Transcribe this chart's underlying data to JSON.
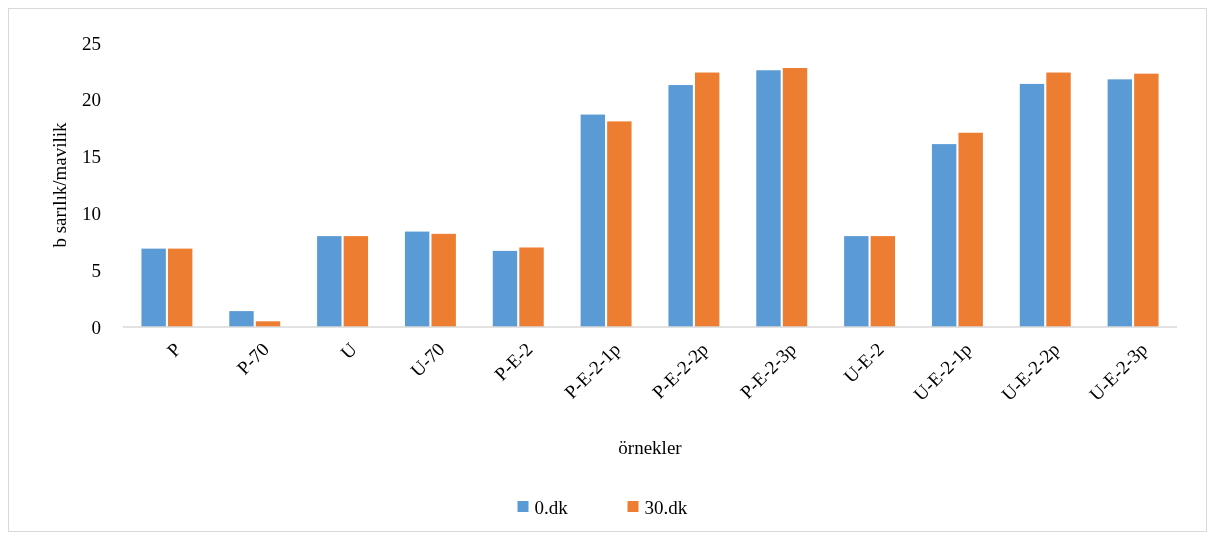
{
  "chart_data": {
    "type": "bar",
    "xlabel": "örnekler",
    "ylabel": "b sarılık/mavilik",
    "categories": [
      "P",
      "P-70",
      "U",
      "U-70",
      "P-E-2",
      "P-E-2-1p",
      "P-E-2-2p",
      "P-E-2-3p",
      "U-E-2",
      "U-E-2-1p",
      "U-E-2-2p",
      "U-E-2-3p"
    ],
    "series": [
      {
        "name": "0.dk",
        "color": "#5b9bd5",
        "values": [
          6.9,
          1.4,
          8.0,
          8.4,
          6.7,
          18.7,
          21.3,
          22.6,
          8.0,
          16.1,
          21.4,
          21.8
        ]
      },
      {
        "name": "30.dk",
        "color": "#ed7d31",
        "values": [
          6.9,
          0.5,
          8.0,
          8.2,
          7.0,
          18.1,
          22.4,
          22.8,
          8.0,
          17.1,
          22.4,
          22.3
        ]
      }
    ],
    "ylim": [
      0,
      25
    ],
    "yticks": [
      0,
      5,
      10,
      15,
      20,
      25
    ],
    "grid": false,
    "legend": "bottom"
  }
}
